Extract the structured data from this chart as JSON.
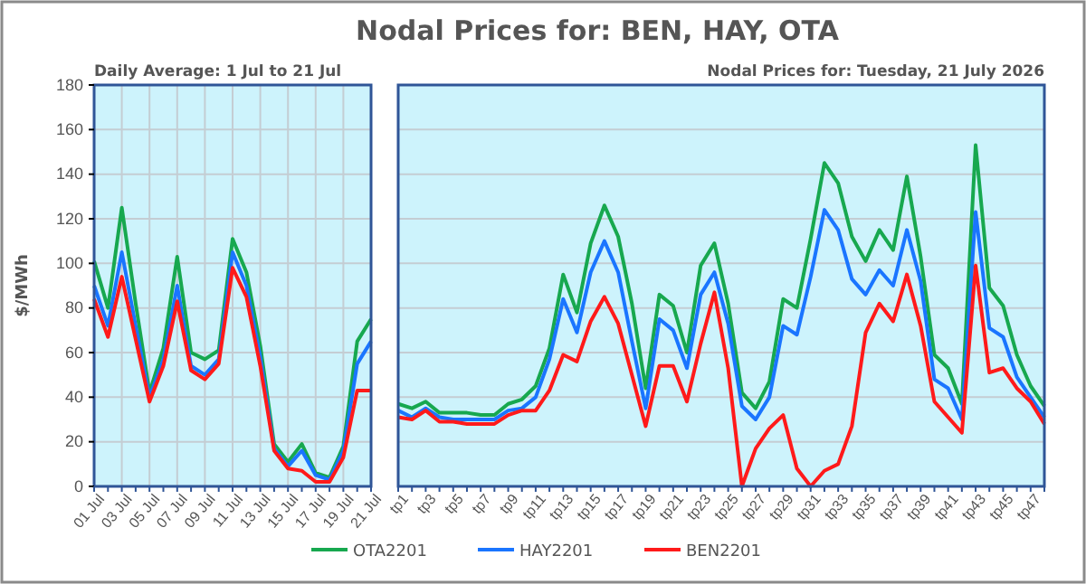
{
  "chart_data": [
    {
      "type": "line",
      "subtitle": "Daily Average: 1 Jul to 21 Jul",
      "ylabel": "$/MWh",
      "categories": [
        "01 Jul",
        null,
        "03 Jul",
        null,
        "05 Jul",
        null,
        "07 Jul",
        null,
        "09 Jul",
        null,
        "11 Jul",
        null,
        "13 Jul",
        null,
        "15 Jul",
        null,
        "17 Jul",
        null,
        "19 Jul",
        null,
        "21 Jul"
      ],
      "series": [
        {
          "name": "OTA2201",
          "color": "#17a84f",
          "values": [
            101,
            80,
            125,
            82,
            42,
            62,
            103,
            60,
            57,
            61,
            111,
            96,
            63,
            19,
            11,
            19,
            6,
            4,
            18,
            65,
            75
          ]
        },
        {
          "name": "HAY2201",
          "color": "#1a75ff",
          "values": [
            90,
            72,
            105,
            72,
            40,
            57,
            90,
            54,
            50,
            57,
            105,
            90,
            58,
            17,
            9,
            16,
            5,
            3,
            16,
            55,
            65
          ]
        },
        {
          "name": "BEN2201",
          "color": "#ff1a1a",
          "values": [
            84,
            67,
            94,
            66,
            38,
            54,
            83,
            52,
            48,
            55,
            98,
            85,
            54,
            16,
            8,
            7,
            2,
            2,
            13,
            43,
            43
          ]
        }
      ],
      "ylim": [
        0,
        180
      ],
      "yticks": [
        0,
        20,
        40,
        60,
        80,
        100,
        120,
        140,
        160,
        180
      ],
      "grid": true,
      "legend": "bottom"
    },
    {
      "type": "line",
      "title": "Nodal Prices for: BEN, HAY, OTA",
      "subtitle": "Nodal Prices for: Tuesday, 21 July 2026",
      "categories": [
        "tp1",
        null,
        "tp3",
        null,
        "tp5",
        null,
        "tp7",
        null,
        "tp9",
        null,
        "tp11",
        null,
        "tp13",
        null,
        "tp15",
        null,
        "tp17",
        null,
        "tp19",
        null,
        "tp21",
        null,
        "tp23",
        null,
        "tp25",
        null,
        "tp27",
        null,
        "tp29",
        null,
        "tp31",
        null,
        "tp33",
        null,
        "tp35",
        null,
        "tp37",
        null,
        "tp39",
        null,
        "tp41",
        null,
        "tp43",
        null,
        "tp45",
        null,
        "tp47",
        null
      ],
      "series": [
        {
          "color": "#17a84f",
          "values": [
            37,
            35,
            38,
            33,
            33,
            33,
            32,
            32,
            37,
            39,
            45,
            62,
            95,
            78,
            109,
            126,
            112,
            82,
            44,
            86,
            81,
            60,
            99,
            109,
            82,
            42,
            35,
            47,
            84,
            80,
            111,
            145,
            136,
            112,
            101,
            115,
            106,
            139,
            103,
            59,
            53,
            37,
            153,
            89,
            81,
            59,
            45,
            36
          ]
        },
        {
          "color": "#1a75ff",
          "values": [
            34,
            31,
            35,
            31,
            30,
            30,
            30,
            30,
            34,
            35,
            40,
            57,
            84,
            69,
            96,
            110,
            96,
            65,
            35,
            75,
            70,
            53,
            86,
            96,
            73,
            36,
            30,
            40,
            72,
            68,
            94,
            124,
            115,
            93,
            86,
            97,
            90,
            115,
            92,
            48,
            44,
            30,
            123,
            71,
            67,
            49,
            40,
            31
          ]
        },
        {
          "color": "#ff1a1a",
          "values": [
            31,
            30,
            34,
            29,
            29,
            28,
            28,
            28,
            32,
            34,
            34,
            43,
            59,
            56,
            74,
            85,
            73,
            50,
            27,
            54,
            54,
            38,
            64,
            87,
            53,
            0,
            17,
            26,
            32,
            8,
            0,
            7,
            10,
            27,
            69,
            82,
            74,
            95,
            72,
            38,
            31,
            24,
            99,
            51,
            53,
            44,
            38,
            28
          ]
        }
      ],
      "ylim": [
        0,
        180
      ],
      "yticks": [
        0,
        20,
        40,
        60,
        80,
        100,
        120,
        140,
        160,
        180
      ],
      "grid": "y",
      "tick_labels": "x"
    }
  ]
}
